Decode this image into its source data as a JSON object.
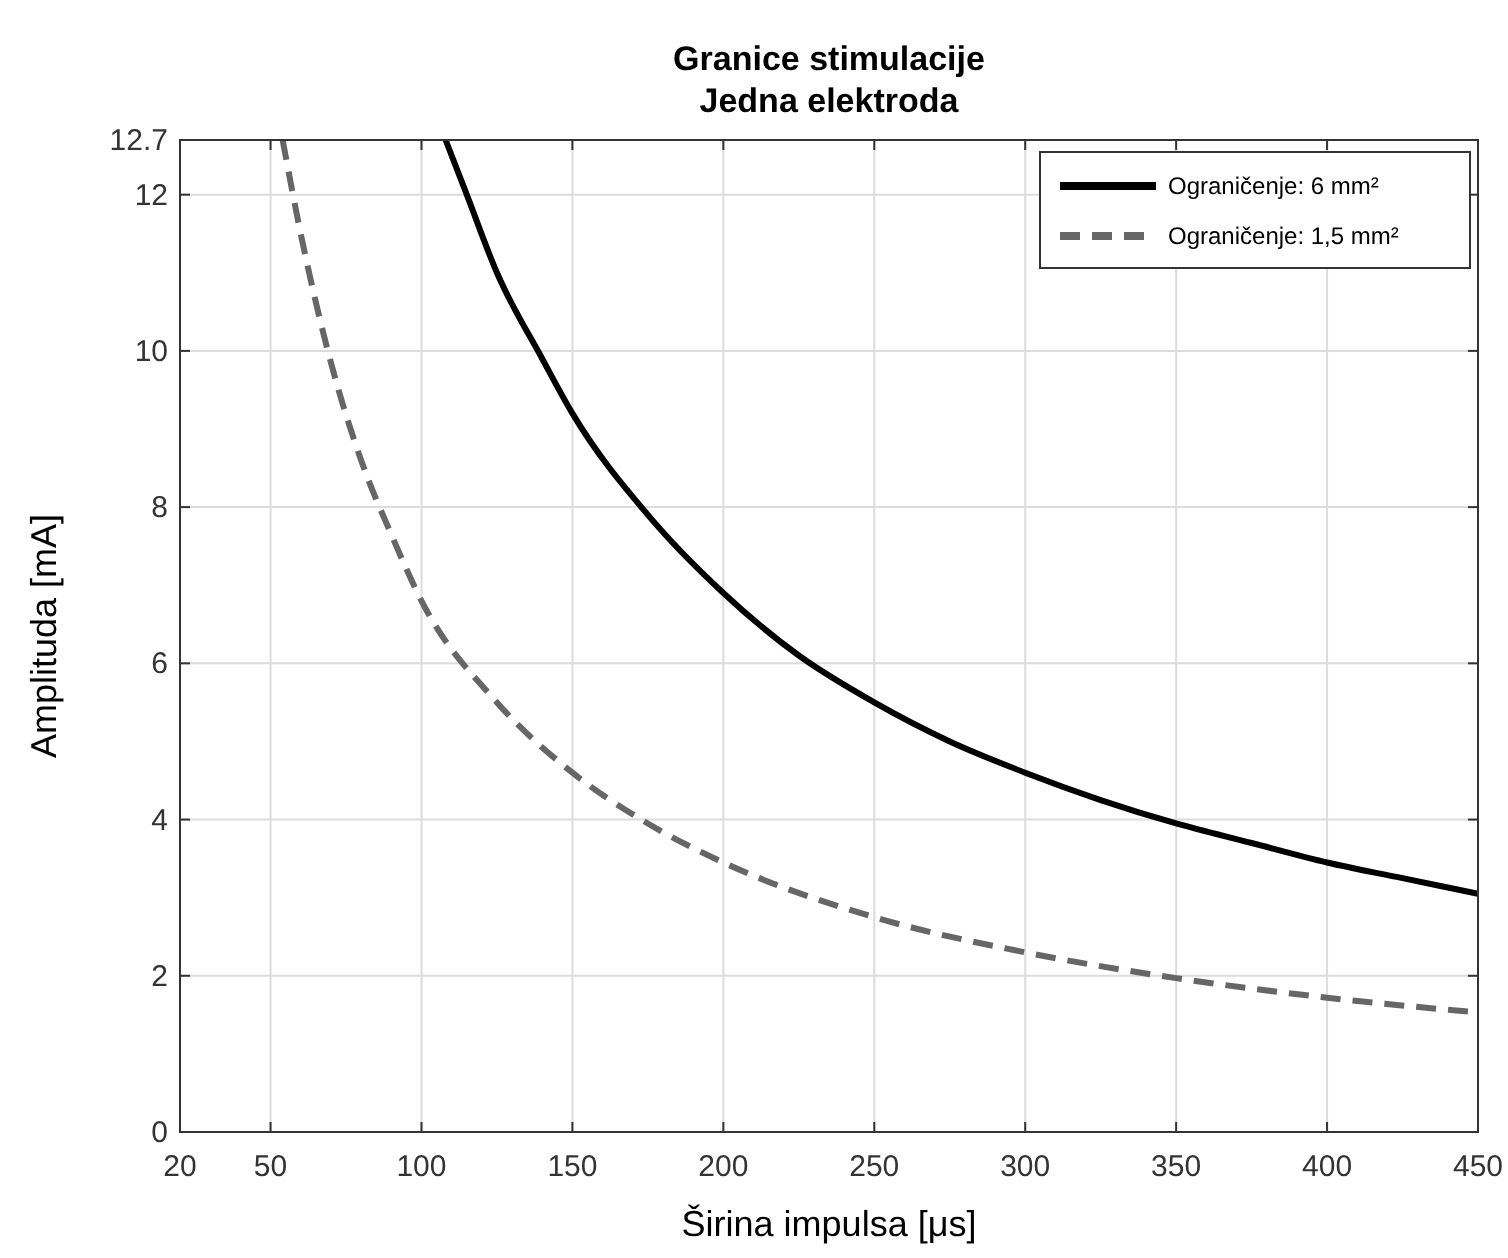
{
  "chart_data": {
    "type": "line",
    "title": "Granice stimulacije",
    "subtitle": "Jedna elektroda",
    "xlabel": "Širina impulsa [μs]",
    "ylabel": "Amplituda [mA]",
    "xlim": [
      20,
      450
    ],
    "xticks": [
      20,
      50,
      100,
      150,
      200,
      250,
      300,
      350,
      400,
      450
    ],
    "ylim": [
      0,
      12.7
    ],
    "yticks": [
      0,
      2,
      4,
      6,
      8,
      10,
      12,
      12.7
    ],
    "grid": true,
    "legend": "top right",
    "series": [
      {
        "name": "Ograničenje: 6 mm²",
        "color": "#000000",
        "line_style": "solid",
        "x": [
          108,
          115,
          125,
          140,
          150,
          175,
          200,
          225,
          250,
          275,
          300,
          325,
          350,
          375,
          400,
          425,
          450
        ],
        "values": [
          12.7,
          12.0,
          11.0,
          9.9,
          9.2,
          7.9,
          6.9,
          6.1,
          5.5,
          5.0,
          4.6,
          4.25,
          3.95,
          3.7,
          3.45,
          3.25,
          3.05
        ]
      },
      {
        "name": "Ograničenje: 1,5 mm²",
        "color": "#666666",
        "line_style": "dashed",
        "x": [
          54,
          60,
          70,
          80,
          90,
          100,
          125,
          150,
          175,
          200,
          250,
          300,
          350,
          400,
          450
        ],
        "values": [
          12.7,
          11.5,
          9.85,
          8.6,
          7.65,
          6.8,
          5.5,
          4.6,
          3.95,
          3.45,
          2.75,
          2.3,
          1.97,
          1.72,
          1.53
        ]
      }
    ]
  }
}
